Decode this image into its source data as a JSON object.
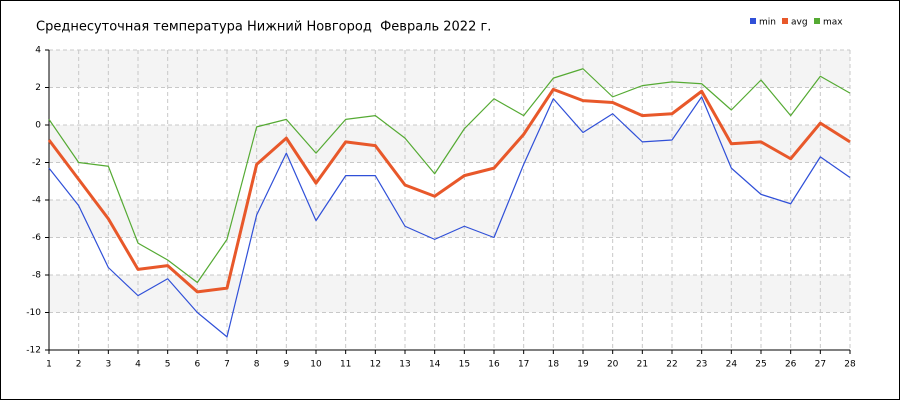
{
  "chart_data": {
    "type": "line",
    "title": "Среднесуточная температура Нижний Новгород  Февраль 2022 г.",
    "x": [
      1,
      2,
      3,
      4,
      5,
      6,
      7,
      8,
      9,
      10,
      11,
      12,
      13,
      14,
      15,
      16,
      17,
      18,
      19,
      20,
      21,
      22,
      23,
      24,
      25,
      26,
      27,
      28
    ],
    "xlim": [
      1,
      28
    ],
    "xticks": [
      1,
      2,
      3,
      4,
      5,
      6,
      7,
      8,
      9,
      10,
      11,
      12,
      13,
      14,
      15,
      16,
      17,
      18,
      19,
      20,
      21,
      22,
      23,
      24,
      25,
      26,
      27,
      28
    ],
    "ylim": [
      -12,
      4
    ],
    "yticks": [
      -12,
      -10,
      -8,
      -6,
      -4,
      -2,
      0,
      2,
      4
    ],
    "grid": true,
    "legend": "top-right",
    "series": [
      {
        "name": "min",
        "color": "#3050d8",
        "values": [
          -2.3,
          -4.3,
          -7.6,
          -9.1,
          -8.2,
          -10.0,
          -11.3,
          -4.8,
          -1.5,
          -5.1,
          -2.7,
          -2.7,
          -5.4,
          -6.1,
          -5.4,
          -6.0,
          -2.1,
          1.4,
          -0.4,
          0.6,
          -0.9,
          -0.8,
          1.5,
          -2.3,
          -3.7,
          -4.2,
          -1.7,
          -2.8
        ]
      },
      {
        "name": "avg",
        "color": "#e8582a",
        "values": [
          -0.8,
          -2.9,
          -5.0,
          -7.7,
          -7.5,
          -8.9,
          -8.7,
          -2.1,
          -0.7,
          -3.1,
          -0.9,
          -1.1,
          -3.2,
          -3.8,
          -2.7,
          -2.3,
          -0.5,
          1.9,
          1.3,
          1.2,
          0.5,
          0.6,
          1.8,
          -1.0,
          -0.9,
          -1.8,
          0.1,
          -0.9
        ]
      },
      {
        "name": "max",
        "color": "#55aa33",
        "values": [
          0.3,
          -2.0,
          -2.2,
          -6.3,
          -7.2,
          -8.4,
          -6.1,
          -0.1,
          0.3,
          -1.5,
          0.3,
          0.5,
          -0.7,
          -2.6,
          -0.2,
          1.4,
          0.5,
          2.5,
          3.0,
          1.5,
          2.1,
          2.3,
          2.2,
          0.8,
          2.4,
          0.5,
          2.6,
          1.7
        ]
      }
    ]
  }
}
